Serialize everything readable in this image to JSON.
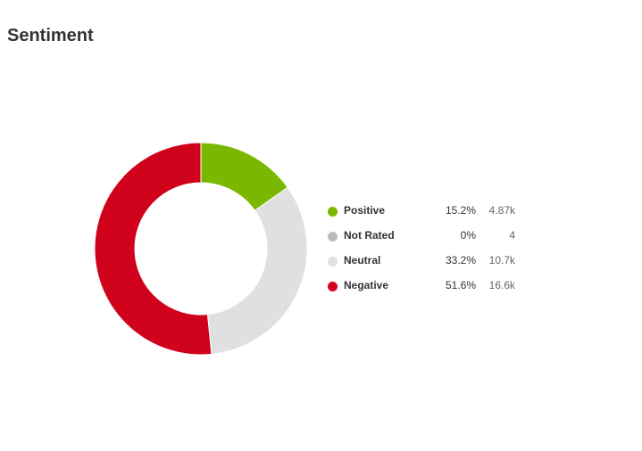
{
  "title": "Sentiment",
  "chart_data": {
    "type": "pie",
    "variant": "donut",
    "legend_position": "right",
    "slices": [
      {
        "label": "Positive",
        "percent": 15.2,
        "percent_text": "15.2%",
        "count_text": "4.87k",
        "color": "#7ab800"
      },
      {
        "label": "Not Rated",
        "percent": 0,
        "percent_text": "0%",
        "count_text": "4",
        "color": "#bbbbbb"
      },
      {
        "label": "Neutral",
        "percent": 33.2,
        "percent_text": "33.2%",
        "count_text": "10.7k",
        "color": "#e0e0e0"
      },
      {
        "label": "Negative",
        "percent": 51.6,
        "percent_text": "51.6%",
        "count_text": "16.6k",
        "color": "#d0021b"
      }
    ]
  }
}
